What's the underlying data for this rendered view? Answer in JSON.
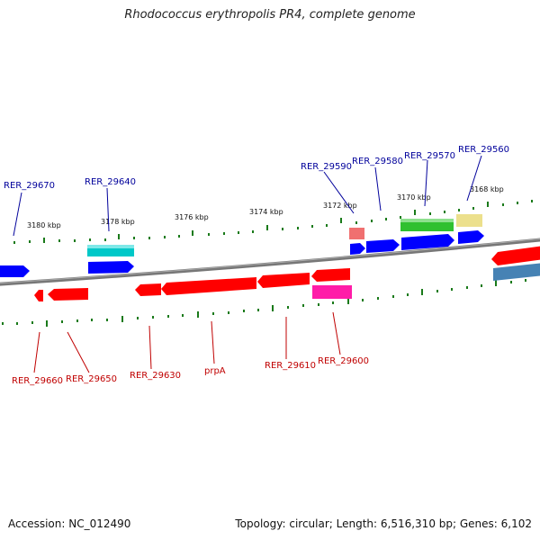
{
  "title": "Rhodococcus erythropolis PR4, complete genome",
  "footer": {
    "accession": "Accession: NC_012490",
    "topology": "Topology: circular; Length: 6,516,310 bp; Genes: 6,102"
  },
  "colors": {
    "backbone": "#808080",
    "forward_label": "#00009b",
    "reverse_label": "#c00000",
    "tick_mark": "#1a7a1a",
    "gene_red": "#ff0000",
    "gene_blue": "#0000ff",
    "gene_cyan": "#00c8c8",
    "gene_green": "#30c030",
    "gene_yellow": "#ece08c",
    "gene_pink": "#f070a0",
    "gene_magenta": "#ff1ca8",
    "gene_steel": "#4682b4"
  },
  "scale_labels": [
    "3180 kbp",
    "3178 kbp",
    "3176 kbp",
    "3174 kbp",
    "3172 kbp",
    "3170 kbp",
    "3168 kbp"
  ],
  "forward_labels": [
    "RER_29670",
    "RER_29640",
    "RER_29590",
    "RER_29580",
    "RER_29570",
    "RER_29560"
  ],
  "reverse_labels": [
    "RER_29660",
    "RER_29650",
    "RER_29630",
    "prpA",
    "RER_29610",
    "RER_29600"
  ]
}
